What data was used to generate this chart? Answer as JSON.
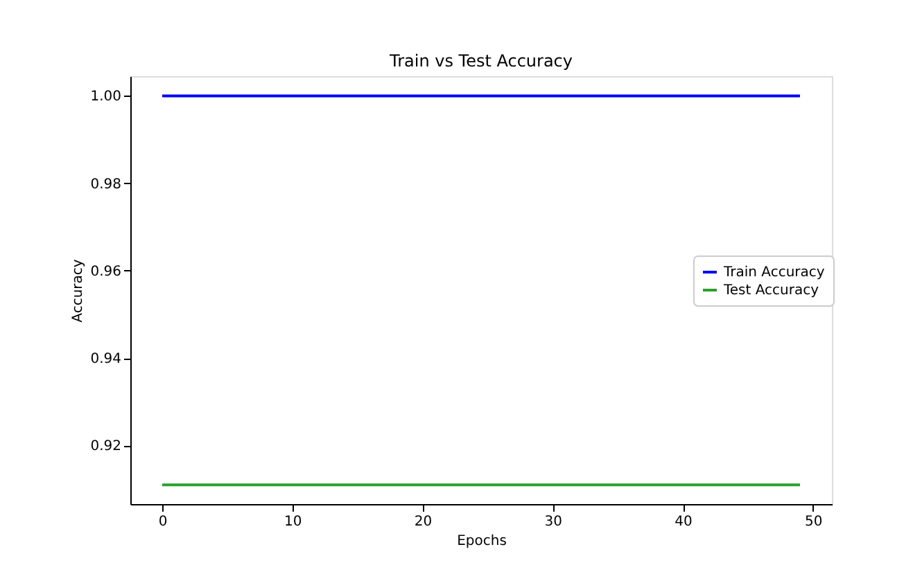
{
  "chart_data": {
    "type": "line",
    "title": "Train vs Test Accuracy",
    "xlabel": "Epochs",
    "ylabel": "Accuracy",
    "x": [
      0,
      49
    ],
    "series": [
      {
        "name": "Train Accuracy",
        "color": "#0000ff",
        "values": [
          1,
          1
        ]
      },
      {
        "name": "Test Accuracy",
        "color": "#2ca02c",
        "values": [
          0.911,
          0.911
        ]
      }
    ],
    "xlim": [
      -2.45,
      51.45
    ],
    "xticks": [
      0,
      10,
      20,
      30,
      40,
      50
    ],
    "ylim": [
      0.9066,
      1.0045
    ],
    "yticks": [
      {
        "value": 0.92,
        "label": "0.92"
      },
      {
        "value": 0.94,
        "label": "0.94"
      },
      {
        "value": 0.96,
        "label": "0.96"
      },
      {
        "value": 0.98,
        "label": "0.98"
      },
      {
        "value": 1.0,
        "label": "1.00"
      }
    ],
    "grid": false,
    "legend": "right",
    "marker": "none",
    "line_style": "solid"
  }
}
